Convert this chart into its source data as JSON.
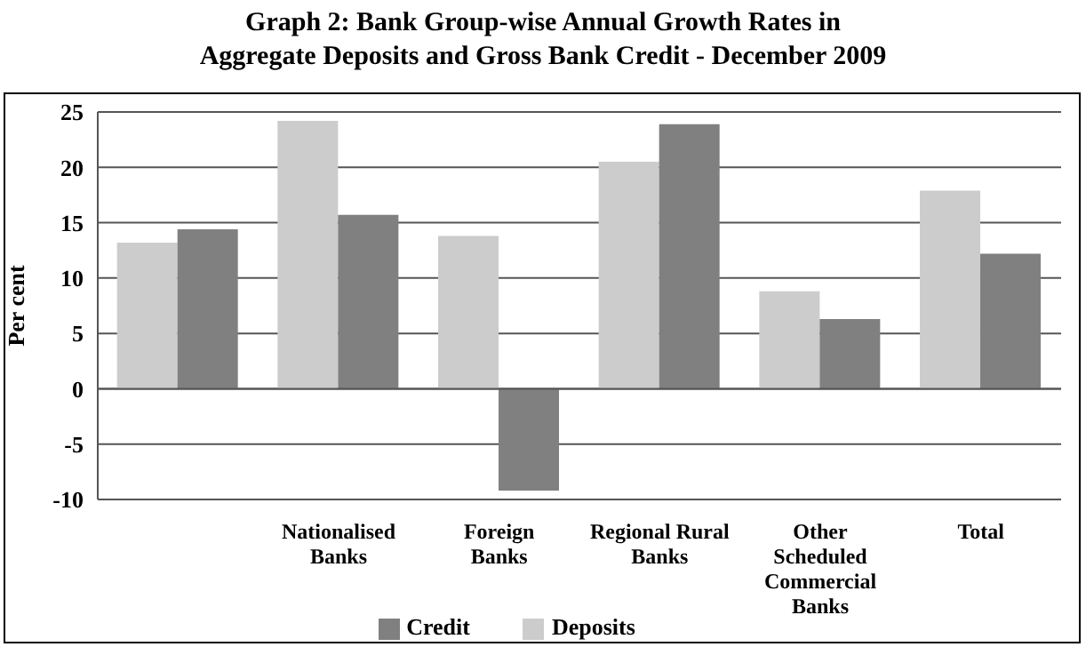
{
  "chart_data": {
    "type": "bar",
    "title": "Graph 2: Bank Group-wise Annual Growth Rates in\nAggregate Deposits and Gross Bank Credit - December 2009",
    "ylabel": "Per cent",
    "categories": [
      null,
      "Nationalised\nBanks",
      "Foreign\nBanks",
      "Regional Rural\nBanks",
      "Other\nScheduled\nCommercial\nBanks",
      "Total"
    ],
    "series": [
      {
        "name": "Deposits",
        "color": "#cccccc",
        "values": [
          13.2,
          24.2,
          13.8,
          20.5,
          8.8,
          17.9
        ]
      },
      {
        "name": "Credit",
        "color": "#808080",
        "values": [
          14.4,
          15.7,
          -9.2,
          23.9,
          6.3,
          12.2
        ]
      }
    ],
    "ylim": [
      -10,
      25
    ],
    "yticks": [
      -10,
      -5,
      0,
      5,
      10,
      15,
      20,
      25
    ],
    "grid": "y",
    "legend": "bottom"
  }
}
